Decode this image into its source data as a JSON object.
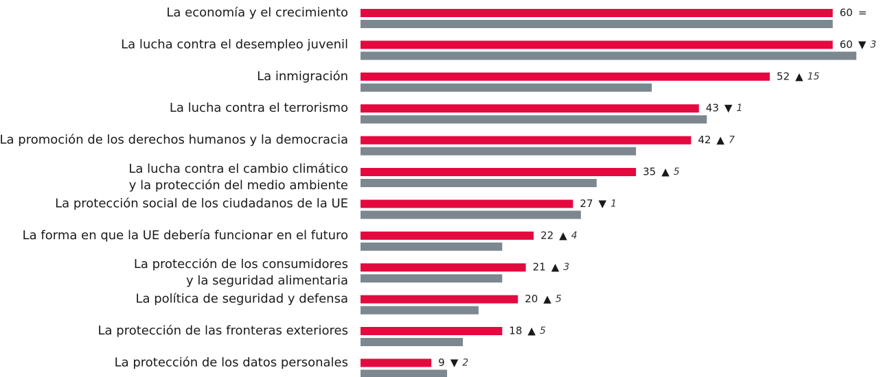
{
  "chart_data": {
    "type": "bar",
    "orientation": "horizontal",
    "categories": [
      "La economía y el crecimiento",
      "La lucha contra el desempleo juvenil",
      "La inmigración",
      "La lucha contra el terrorismo",
      "La promoción de los derechos humanos y la democracia",
      [
        "La lucha contra el cambio climático",
        "y la protección del medio ambiente"
      ],
      "La protección social de los ciudadanos de la UE",
      "La forma en que la UE debería funcionar en el futuro",
      [
        "La protección de los consumidores",
        "y la seguridad alimentaria"
      ],
      "La política de seguridad y defensa",
      "La protección de las fronteras exteriores",
      "La protección de los datos personales"
    ],
    "series": [
      {
        "color": "#e4093f",
        "values": [
          60,
          60,
          52,
          43,
          42,
          35,
          27,
          22,
          21,
          20,
          18,
          9
        ]
      },
      {
        "color": "#7d878f",
        "values": [
          60,
          63,
          37,
          44,
          35,
          30,
          28,
          18,
          18,
          15,
          13,
          11
        ]
      }
    ],
    "change_symbols": [
      "=",
      "▼",
      "▲",
      "▼",
      "▲",
      "▲",
      "▼",
      "▲",
      "▲",
      "▲",
      "▲",
      "▼"
    ],
    "change_values": [
      null,
      3,
      15,
      1,
      7,
      5,
      1,
      4,
      3,
      5,
      5,
      2
    ]
  }
}
